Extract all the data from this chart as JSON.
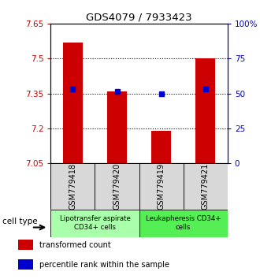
{
  "title": "GDS4079 / 7933423",
  "samples": [
    "GSM779418",
    "GSM779420",
    "GSM779419",
    "GSM779421"
  ],
  "bar_values": [
    7.57,
    7.36,
    7.19,
    7.5
  ],
  "percentile_values": [
    7.37,
    7.36,
    7.35,
    7.37
  ],
  "bar_color": "#cc0000",
  "percentile_color": "#0000cc",
  "ylim_left": [
    7.05,
    7.65
  ],
  "ylim_right": [
    0,
    100
  ],
  "yticks_left": [
    7.05,
    7.2,
    7.35,
    7.5,
    7.65
  ],
  "ytick_labels_left": [
    "7.05",
    "7.2",
    "7.35",
    "7.5",
    "7.65"
  ],
  "yticks_right": [
    0,
    25,
    50,
    75,
    100
  ],
  "ytick_labels_right": [
    "0",
    "25",
    "50",
    "75",
    "100%"
  ],
  "hlines": [
    7.2,
    7.35,
    7.5
  ],
  "groups": [
    {
      "label": "Lipotransfer aspirate\nCD34+ cells",
      "samples": [
        0,
        1
      ],
      "color": "#aaffaa"
    },
    {
      "label": "Leukapheresis CD34+\ncells",
      "samples": [
        2,
        3
      ],
      "color": "#55ee55"
    }
  ],
  "cell_type_label": "cell type",
  "legend_items": [
    {
      "color": "#cc0000",
      "label": "transformed count"
    },
    {
      "color": "#0000cc",
      "label": "percentile rank within the sample"
    }
  ]
}
